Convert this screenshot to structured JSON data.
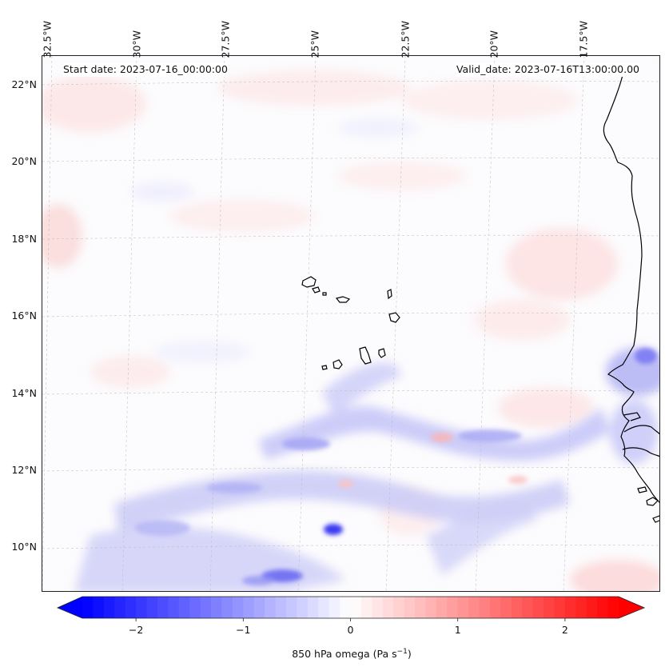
{
  "figure": {
    "start_date": "Start date: 2023-07-16_00:00:00",
    "valid_date": "Valid_date: 2023-07-16T13:00:00.00",
    "variable": "850 hPa omega",
    "units_label_prefix": "850 hPa omega (Pa s",
    "units_exponent": "−1",
    "units_label_suffix": ")"
  },
  "axes": {
    "longitude_labels": [
      "32.5°W",
      "30°W",
      "27.5°W",
      "25°W",
      "22.5°W",
      "20°W",
      "17.5°W"
    ],
    "latitude_labels": [
      "22°N",
      "20°N",
      "18°N",
      "16°N",
      "14°N",
      "12°N",
      "10°N"
    ],
    "extent": {
      "lon_min": -33.0,
      "lon_max": -15.5,
      "lat_min": 8.8,
      "lat_max": 22.8
    }
  },
  "colorbar": {
    "ticks": [
      {
        "value": -2,
        "label": "−2"
      },
      {
        "value": -1,
        "label": "−1"
      },
      {
        "value": 0,
        "label": "0"
      },
      {
        "value": 1,
        "label": "1"
      },
      {
        "value": 2,
        "label": "2"
      }
    ],
    "vmin": -2.5,
    "vmax": 2.5,
    "extend": "both",
    "colormap": "bwr",
    "color_min": "#0000ff",
    "color_mid": "#ffffff",
    "color_max": "#ff0000"
  },
  "chart_data": {
    "type": "heatmap",
    "title": "",
    "field": "850 hPa omega (Pa s-1)",
    "regions": [
      {
        "name": "ascent-band-north",
        "lat": 12.8,
        "lon_range": [
          -26.5,
          -19.0
        ],
        "value": -0.6
      },
      {
        "name": "ascent-band-south",
        "lat": 11.0,
        "lon_range": [
          -31.0,
          -20.0
        ],
        "value": -0.5
      },
      {
        "name": "strong-ascent-core",
        "lat": 10.5,
        "lon": -24.6,
        "value": -1.8
      },
      {
        "name": "ascent-core-south",
        "lat": 9.3,
        "lon": -25.8,
        "value": -1.4
      },
      {
        "name": "coastal-ascent",
        "lat": 14.9,
        "lon": -16.0,
        "value": -1.2
      },
      {
        "name": "descent-north",
        "lat": 18.2,
        "lon": -32.0,
        "value": 0.3
      },
      {
        "name": "descent-east",
        "lat": 17.0,
        "lon": -17.0,
        "value": 0.3
      },
      {
        "name": "descent-south-east",
        "lat": 9.2,
        "lon": -16.5,
        "value": 0.3
      }
    ],
    "features": [
      "Cabo Verde islands",
      "West African coastline"
    ]
  }
}
